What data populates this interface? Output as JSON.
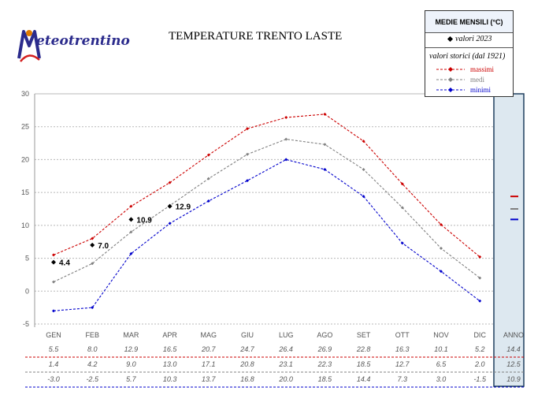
{
  "header": {
    "logo_text": "eteotrentino",
    "title": "TEMPERATURE TRENTO LASTE"
  },
  "legend": {
    "heading": "MEDIE MENSILI (°C)",
    "current": "valori 2023",
    "historic": "valori storici (dal 1921)",
    "max": "massimi",
    "mean": "medi",
    "min": "minimi"
  },
  "colors": {
    "max": "#cc0000",
    "mean": "#808080",
    "min": "#0000cc",
    "current": "#000000",
    "annual_panel": "#dde8f0"
  },
  "chart_data": {
    "type": "line",
    "y_ticks": [
      "30",
      "25",
      "20",
      "15",
      "10",
      "5",
      "0",
      "-5"
    ],
    "ylim": [
      -5,
      30
    ],
    "grid": true,
    "legend_position": "top-right",
    "categories": [
      "GEN",
      "FEB",
      "MAR",
      "APR",
      "MAG",
      "GIU",
      "LUG",
      "AGO",
      "SET",
      "OTT",
      "NOV",
      "DIC"
    ],
    "annual_label": "ANNO",
    "series": [
      {
        "key": "max",
        "name": "massimi",
        "values": [
          5.5,
          8.0,
          12.9,
          16.5,
          20.7,
          24.7,
          26.4,
          26.9,
          22.8,
          16.3,
          10.1,
          5.2
        ],
        "annual": 14.4,
        "labels": [
          "5.5",
          "8.0",
          "12.9",
          "16.5",
          "20.7",
          "24.7",
          "26.4",
          "26.9",
          "22.8",
          "16.3",
          "10.1",
          "5.2"
        ],
        "annual_label": "14.4"
      },
      {
        "key": "mean",
        "name": "medi",
        "values": [
          1.4,
          4.2,
          9.0,
          13.0,
          17.1,
          20.8,
          23.1,
          22.3,
          18.5,
          12.7,
          6.5,
          2.0
        ],
        "annual": 12.5,
        "labels": [
          "1.4",
          "4.2",
          "9.0",
          "13.0",
          "17.1",
          "20.8",
          "23.1",
          "22.3",
          "18.5",
          "12.7",
          "6.5",
          "2.0"
        ],
        "annual_label": "12.5"
      },
      {
        "key": "min",
        "name": "minimi",
        "values": [
          -3.0,
          -2.5,
          5.7,
          10.3,
          13.7,
          16.8,
          20.0,
          18.5,
          14.4,
          7.3,
          3.0,
          -1.5
        ],
        "annual": 10.9,
        "labels": [
          "-3.0",
          "-2.5",
          "5.7",
          "10.3",
          "13.7",
          "16.8",
          "20.0",
          "18.5",
          "14.4",
          "7.3",
          "3.0",
          "-1.5"
        ],
        "annual_label": "10.9"
      }
    ],
    "current_year": {
      "name": "valori 2023",
      "points": [
        {
          "month": "GEN",
          "value": 4.4,
          "label": "4.4"
        },
        {
          "month": "FEB",
          "value": 7.0,
          "label": "7.0"
        },
        {
          "month": "MAR",
          "value": 10.9,
          "label": "10.9"
        },
        {
          "month": "APR",
          "value": 12.9,
          "label": "12.9"
        }
      ]
    }
  }
}
